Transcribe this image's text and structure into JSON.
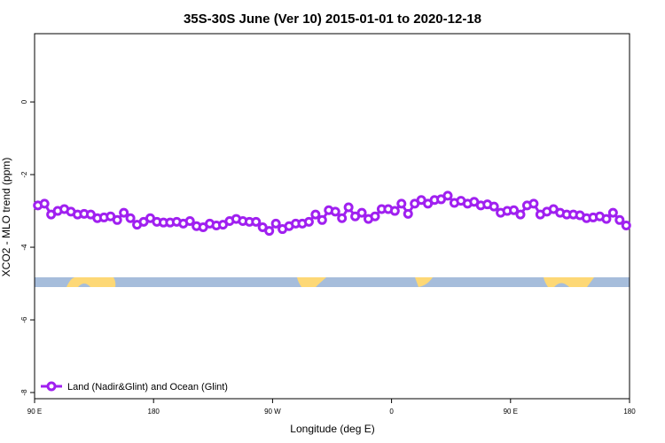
{
  "chart_data": {
    "type": "line",
    "title": "35S-30S June (Ver 10)   2015-01-01 to 2020-12-18",
    "x_label": "Longitude (deg E)",
    "y_label": "XCO2 - MLO trend (ppm)",
    "xlim": [
      90,
      540
    ],
    "ylim": [
      -8.17,
      1.88
    ],
    "xticks": [
      {
        "value": 90,
        "label": "90 E"
      },
      180,
      {
        "value": 270,
        "label": "90 W"
      },
      {
        "value": 360,
        "label": "0"
      },
      {
        "value": 450,
        "label": "90 E"
      },
      {
        "value": 540,
        "label": "180"
      }
    ],
    "yticks": [
      0,
      -2,
      -4,
      -6,
      -8
    ],
    "legend": "lower left",
    "x": [
      92.5,
      97.5,
      102.5,
      107.5,
      112.5,
      117.5,
      122.5,
      127.5,
      132.5,
      137.5,
      142.5,
      147.5,
      152.5,
      157.5,
      162.5,
      167.5,
      172.5,
      177.5,
      182.5,
      187.5,
      192.5,
      197.5,
      202.5,
      207.5,
      212.5,
      217.5,
      222.5,
      227.5,
      232.5,
      237.5,
      242.5,
      247.5,
      252.5,
      257.5,
      262.5,
      267.5,
      272.5,
      277.5,
      282.5,
      287.5,
      292.5,
      297.5,
      302.5,
      307.5,
      312.5,
      317.5,
      322.5,
      327.5,
      332.5,
      337.5,
      342.5,
      347.5,
      352.5,
      357.5,
      362.5,
      367.5,
      372.5,
      377.5,
      382.5,
      387.5,
      392.5,
      397.5,
      402.5,
      407.5,
      412.5,
      417.5,
      422.5,
      427.5,
      432.5,
      437.5,
      442.5,
      447.5,
      452.5,
      457.5,
      462.5,
      467.5,
      472.5,
      477.5,
      482.5,
      487.5,
      492.5,
      497.5,
      502.5,
      507.5,
      512.5,
      517.5,
      522.5,
      527.5,
      532.5,
      537.5
    ],
    "series": [
      {
        "name": "Land (Nadir&Glint) and Ocean (Glint)",
        "color": "#a020f0",
        "values": [
          -2.85,
          -2.8,
          -3.1,
          -3.0,
          -2.95,
          -3.02,
          -3.1,
          -3.08,
          -3.1,
          -3.2,
          -3.18,
          -3.15,
          -3.25,
          -3.05,
          -3.2,
          -3.38,
          -3.3,
          -3.2,
          -3.3,
          -3.32,
          -3.32,
          -3.3,
          -3.35,
          -3.28,
          -3.42,
          -3.45,
          -3.35,
          -3.4,
          -3.38,
          -3.28,
          -3.22,
          -3.28,
          -3.3,
          -3.3,
          -3.45,
          -3.55,
          -3.35,
          -3.5,
          -3.42,
          -3.35,
          -3.35,
          -3.3,
          -3.1,
          -3.25,
          -2.98,
          -3.02,
          -3.2,
          -2.9,
          -3.15,
          -3.05,
          -3.22,
          -3.15,
          -2.95,
          -2.95,
          -3.0,
          -2.8,
          -3.08,
          -2.8,
          -2.7,
          -2.8,
          -2.7,
          -2.68,
          -2.58,
          -2.78,
          -2.72,
          -2.8,
          -2.75,
          -2.85,
          -2.82,
          -2.88,
          -3.05,
          -3.0,
          -2.98,
          -3.1,
          -2.85,
          -2.8,
          -3.1,
          -3.02,
          -2.95,
          -3.05,
          -3.1,
          -3.1,
          -3.12,
          -3.2,
          -3.18,
          -3.15,
          -3.22,
          -3.05,
          -3.25,
          -3.4
        ]
      }
    ]
  }
}
